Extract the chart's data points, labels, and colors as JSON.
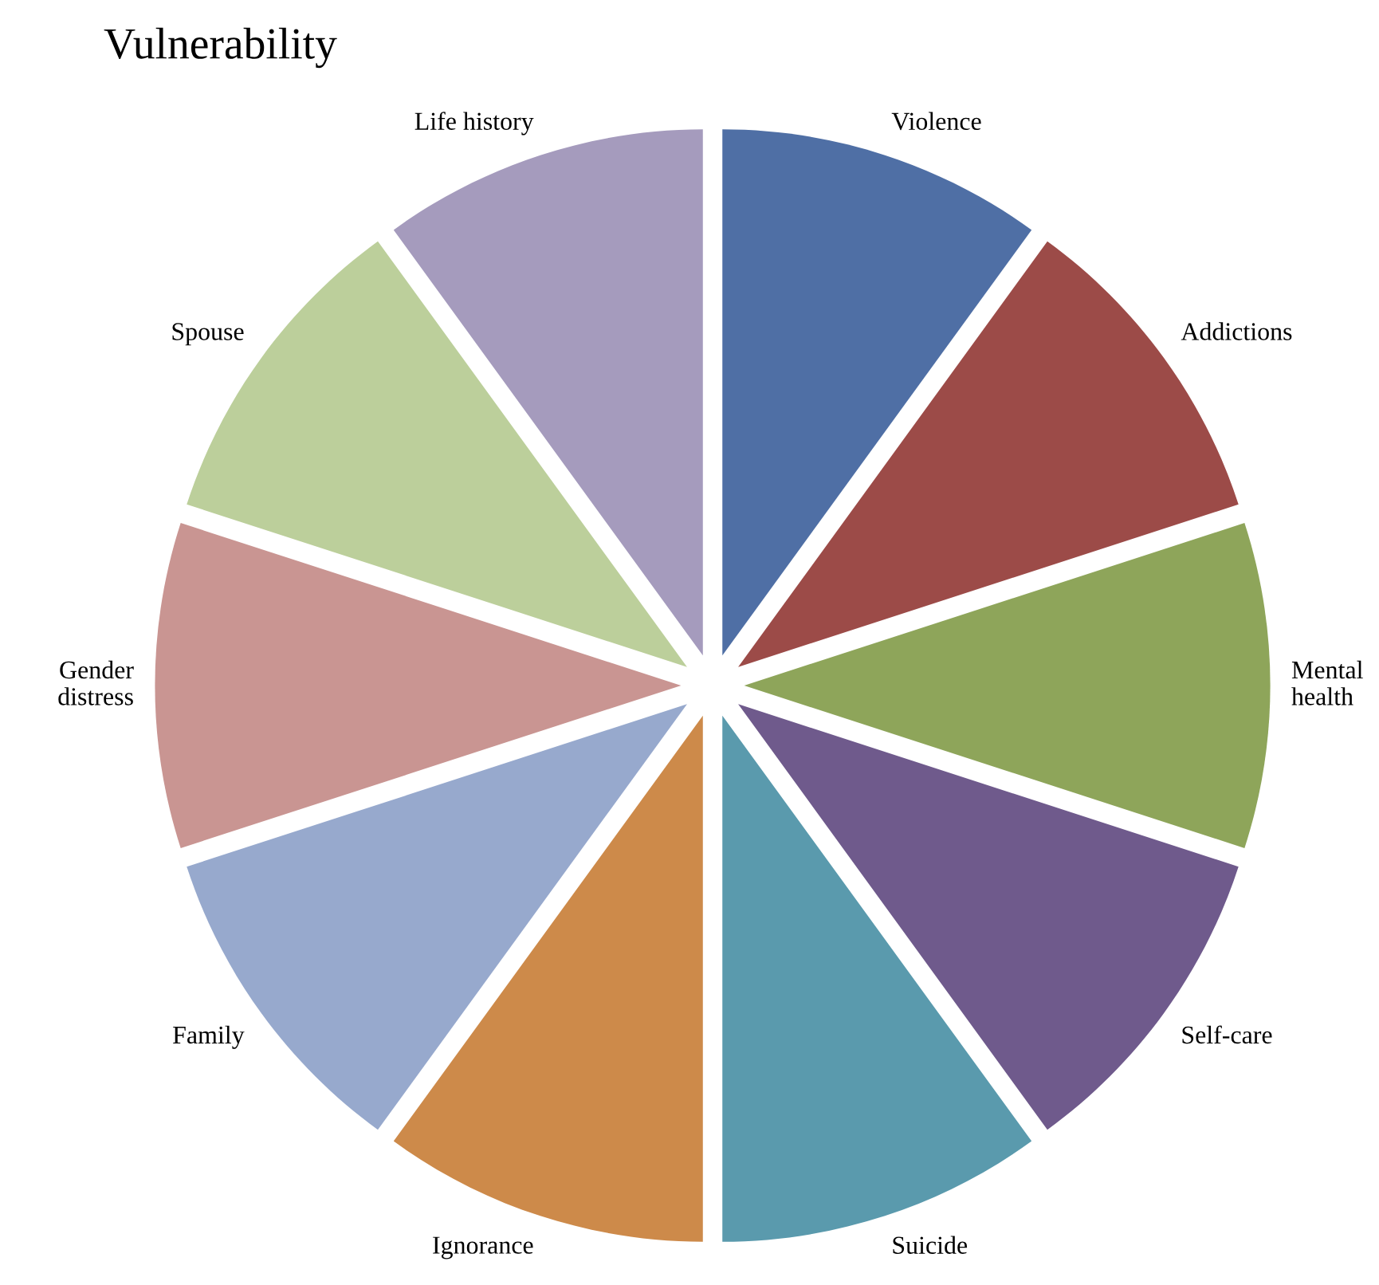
{
  "chart_data": {
    "type": "pie",
    "title": "Vulnerability",
    "categories": [
      "Violence",
      "Addictions",
      "Mental health",
      "Self-care",
      "Suicide",
      "Ignorance",
      "Family",
      "Gender distress",
      "Spouse",
      "Life history"
    ],
    "values": [
      10,
      10,
      10,
      10,
      10,
      10,
      10,
      10,
      10,
      10
    ],
    "colors": [
      "#4f6fa5",
      "#9c4b48",
      "#8ea55a",
      "#6f5a8c",
      "#5a9aad",
      "#cd8a4a",
      "#97a9cd",
      "#c99592",
      "#bccf9b",
      "#a59bbd"
    ],
    "legend": false
  }
}
